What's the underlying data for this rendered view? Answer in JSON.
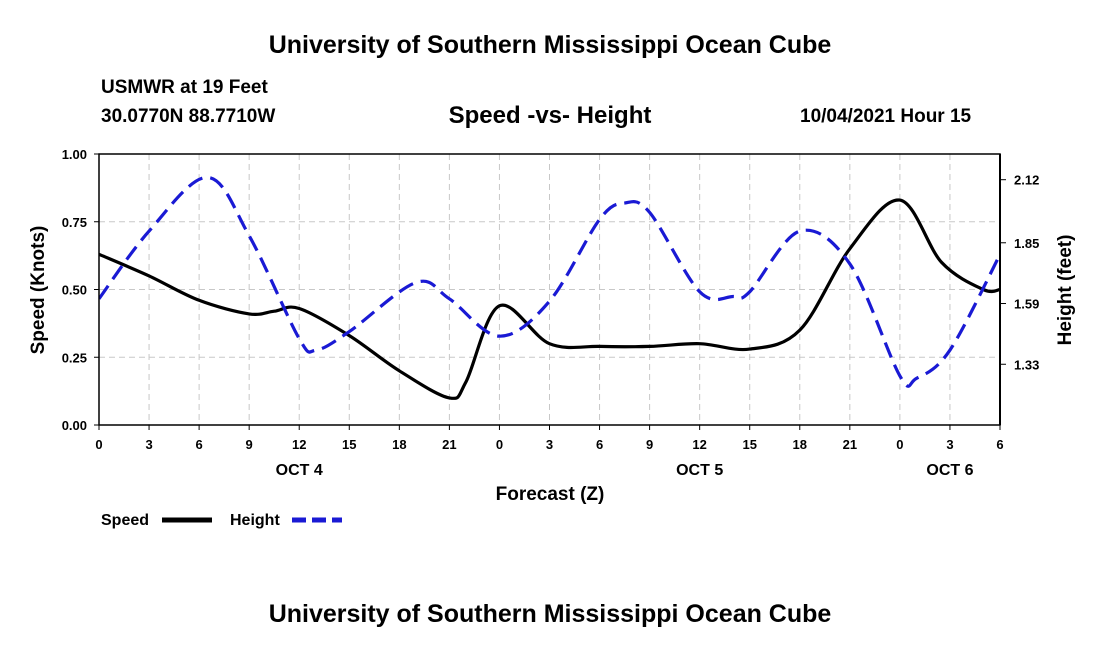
{
  "header": {
    "title": "University of Southern Mississippi Ocean Cube",
    "station": "USMWR at 19 Feet",
    "coords": "30.0770N  88.7710W",
    "subtitle": "Speed -vs- Height",
    "datetime": "10/04/2021 Hour 15"
  },
  "footer": {
    "title": "University of Southern Mississippi Ocean Cube"
  },
  "colors": {
    "speed": "#000000",
    "height": "#1a1ad4",
    "grid": "#c8c8c8"
  },
  "chart_data": {
    "type": "line",
    "title": "Speed -vs- Height",
    "xlabel": "Forecast (Z)",
    "ylabel": "Speed (Knots)",
    "y2label": "Height (feet)",
    "xlim": [
      0,
      54
    ],
    "ylim": [
      0,
      1.0
    ],
    "y2lim": [
      1.07,
      2.23
    ],
    "grid": true,
    "x_ticks": [
      {
        "x": 0,
        "label": "0"
      },
      {
        "x": 3,
        "label": "3"
      },
      {
        "x": 6,
        "label": "6"
      },
      {
        "x": 9,
        "label": "9"
      },
      {
        "x": 12,
        "label": "12"
      },
      {
        "x": 15,
        "label": "15"
      },
      {
        "x": 18,
        "label": "18"
      },
      {
        "x": 21,
        "label": "21"
      },
      {
        "x": 24,
        "label": "0"
      },
      {
        "x": 27,
        "label": "3"
      },
      {
        "x": 30,
        "label": "6"
      },
      {
        "x": 33,
        "label": "9"
      },
      {
        "x": 36,
        "label": "12"
      },
      {
        "x": 39,
        "label": "15"
      },
      {
        "x": 42,
        "label": "18"
      },
      {
        "x": 45,
        "label": "21"
      },
      {
        "x": 48,
        "label": "0"
      },
      {
        "x": 51,
        "label": "3"
      },
      {
        "x": 54,
        "label": "6"
      }
    ],
    "date_labels": [
      {
        "x": 12,
        "label": "OCT 4"
      },
      {
        "x": 36,
        "label": "OCT 5"
      },
      {
        "x": 51,
        "label": "OCT 6"
      }
    ],
    "y_ticks": [
      {
        "v": 0,
        "label": "0.00"
      },
      {
        "v": 0.25,
        "label": "0.25"
      },
      {
        "v": 0.5,
        "label": "0.50"
      },
      {
        "v": 0.75,
        "label": "0.75"
      },
      {
        "v": 1.0,
        "label": "1.00"
      }
    ],
    "y2_ticks": [
      {
        "v": 1.33,
        "label": "1.33"
      },
      {
        "v": 1.59,
        "label": "1.59"
      },
      {
        "v": 1.85,
        "label": "1.85"
      },
      {
        "v": 2.12,
        "label": "2.12"
      }
    ],
    "series": [
      {
        "name": "Speed",
        "axis": "left",
        "style": "solid",
        "x": [
          0,
          3,
          6,
          9,
          10.5,
          12,
          15,
          18,
          21,
          22,
          24,
          27,
          30,
          33,
          36,
          39,
          42,
          45,
          48,
          50.5,
          53,
          54
        ],
        "values": [
          0.63,
          0.55,
          0.46,
          0.41,
          0.42,
          0.43,
          0.33,
          0.2,
          0.1,
          0.16,
          0.44,
          0.3,
          0.29,
          0.29,
          0.3,
          0.28,
          0.35,
          0.65,
          0.83,
          0.6,
          0.5,
          0.5
        ]
      },
      {
        "name": "Height",
        "axis": "right",
        "style": "dashed",
        "x": [
          0,
          3,
          6.5,
          9,
          12,
          13,
          15,
          19,
          21,
          24,
          27,
          30,
          31.5,
          33,
          36,
          38,
          39,
          42,
          45,
          48,
          49,
          51,
          54
        ],
        "values": [
          1.61,
          1.9,
          2.13,
          1.88,
          1.44,
          1.39,
          1.47,
          1.68,
          1.61,
          1.45,
          1.6,
          1.95,
          2.02,
          1.98,
          1.64,
          1.62,
          1.64,
          1.9,
          1.76,
          1.28,
          1.27,
          1.39,
          1.8
        ]
      }
    ],
    "legend": [
      {
        "label": "Speed",
        "style": "solid"
      },
      {
        "label": "Height",
        "style": "dashed"
      }
    ]
  }
}
